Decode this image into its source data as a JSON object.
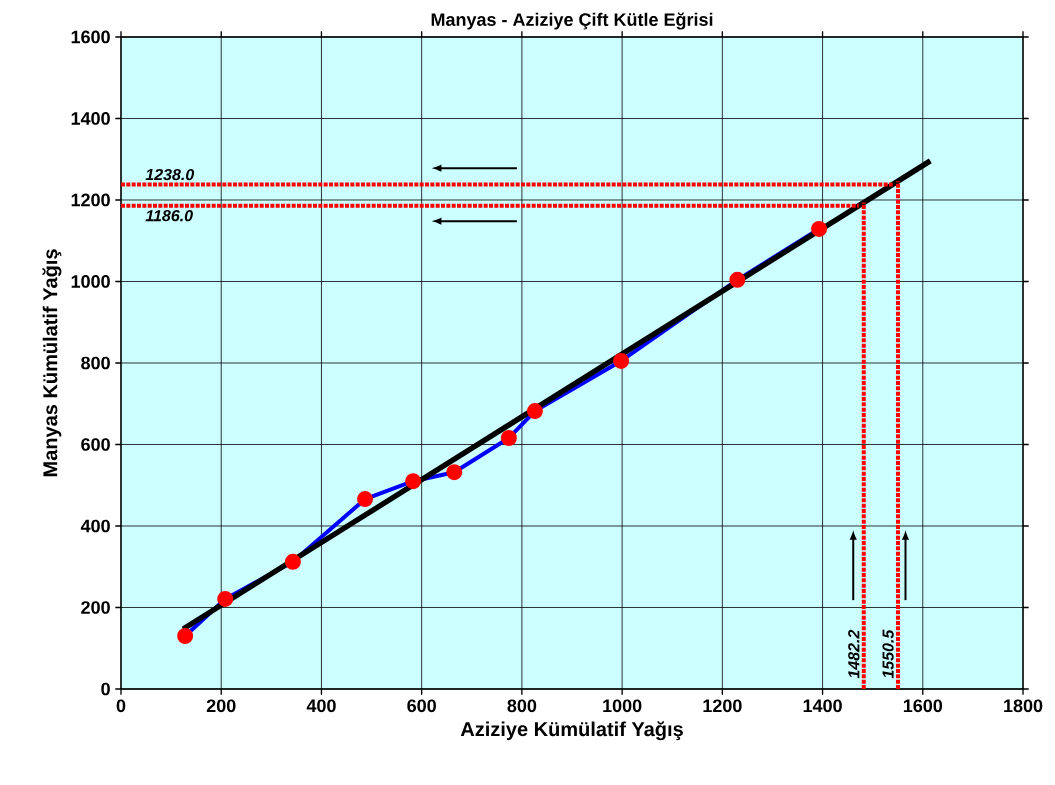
{
  "chart_data": {
    "type": "line",
    "title": "Manyas - Aziziye Çift Kütle Eğrisi",
    "xlabel": "Aziziye Kümülatif Yağış",
    "ylabel": "Manyas Kümülatif Yağış",
    "xlim": [
      0,
      1800
    ],
    "ylim": [
      0,
      1600
    ],
    "xticks": [
      0,
      200,
      400,
      600,
      800,
      1000,
      1200,
      1400,
      1600,
      1800
    ],
    "yticks": [
      0,
      200,
      400,
      600,
      800,
      1000,
      1200,
      1400,
      1600
    ],
    "grid": true,
    "series": [
      {
        "type": "line",
        "color": "#0000ff",
        "marker": "circle",
        "x": [
          128,
          208,
          343,
          487,
          583,
          665,
          774,
          826,
          998,
          1230,
          1393
        ],
        "values": [
          130,
          221,
          312,
          466,
          510,
          532,
          616,
          682,
          805,
          1004,
          1129
        ]
      },
      {
        "type": "line",
        "color": "#000000",
        "marker": "none",
        "x": [
          124,
          1615
        ],
        "values": [
          147,
          1296
        ]
      }
    ],
    "ref_lines": [
      {
        "axis": "y",
        "value": 1238.0,
        "label": "1238.0",
        "color": "#ff0000",
        "line_style": "dotted"
      },
      {
        "axis": "y",
        "value": 1186.0,
        "label": "1186.0",
        "color": "#ff0000",
        "line_style": "dotted"
      },
      {
        "axis": "x",
        "value": 1482.2,
        "label": "1482.2",
        "color": "#ff0000",
        "line_style": "dotted"
      },
      {
        "axis": "x",
        "value": 1550.5,
        "label": "1550.5",
        "color": "#ff0000",
        "line_style": "dotted"
      }
    ]
  }
}
